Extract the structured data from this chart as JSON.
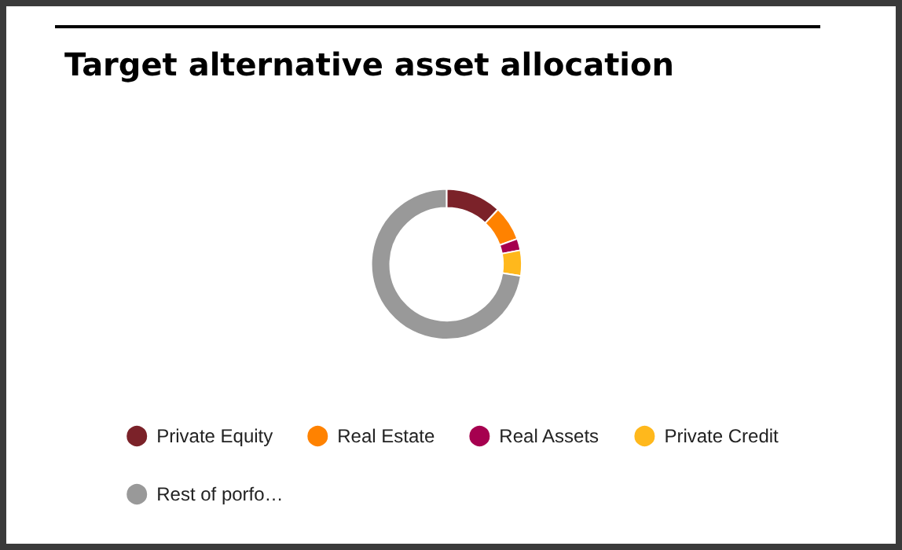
{
  "chart_data": {
    "type": "donut",
    "title": "Target alternative asset allocation",
    "categories": [
      "Private Equity",
      "Real Estate",
      "Real Assets",
      "Private Credit",
      "Rest of porfo…"
    ],
    "values": [
      12,
      7.5,
      2.5,
      5.5,
      72.5
    ],
    "colors": [
      "#7b2229",
      "#ff8200",
      "#a6004f",
      "#ffb81c",
      "#999999"
    ],
    "legend": "bottom"
  }
}
